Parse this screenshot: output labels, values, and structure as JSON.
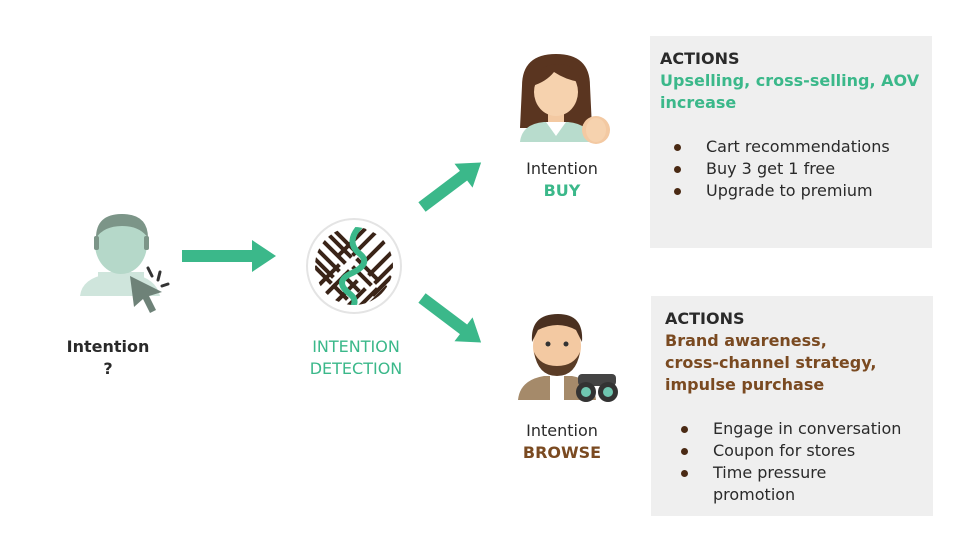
{
  "colors": {
    "accent_green": "#3bb88a",
    "accent_brown": "#7a4a21",
    "card_bg": "#efefef"
  },
  "user": {
    "label": "Intention",
    "value": "?",
    "icons": [
      "user-avatar-icon",
      "cursor-click-icon"
    ]
  },
  "detector": {
    "line1": "INTENTION",
    "line2": "DETECTION",
    "icon": "maze-icon"
  },
  "buy": {
    "label": "Intention",
    "value": "BUY",
    "icon": "woman-shopper-icon",
    "card": {
      "heading": "ACTIONS",
      "subtitle_line1": "Upselling, cross-selling, AOV",
      "subtitle_line2": "increase",
      "items": [
        "Cart recommendations",
        "Buy 3 get 1 free",
        "Upgrade to premium"
      ]
    }
  },
  "browse": {
    "label": "Intention",
    "value": "BROWSE",
    "icon": "man-binoculars-icon",
    "card": {
      "heading": "ACTIONS",
      "subtitle_line1": "Brand awareness,",
      "subtitle_line2": "cross-channel strategy,",
      "subtitle_line3": "impulse purchase",
      "items": [
        "Engage in conversation",
        "Coupon for stores",
        "Time pressure",
        "promotion"
      ]
    }
  }
}
